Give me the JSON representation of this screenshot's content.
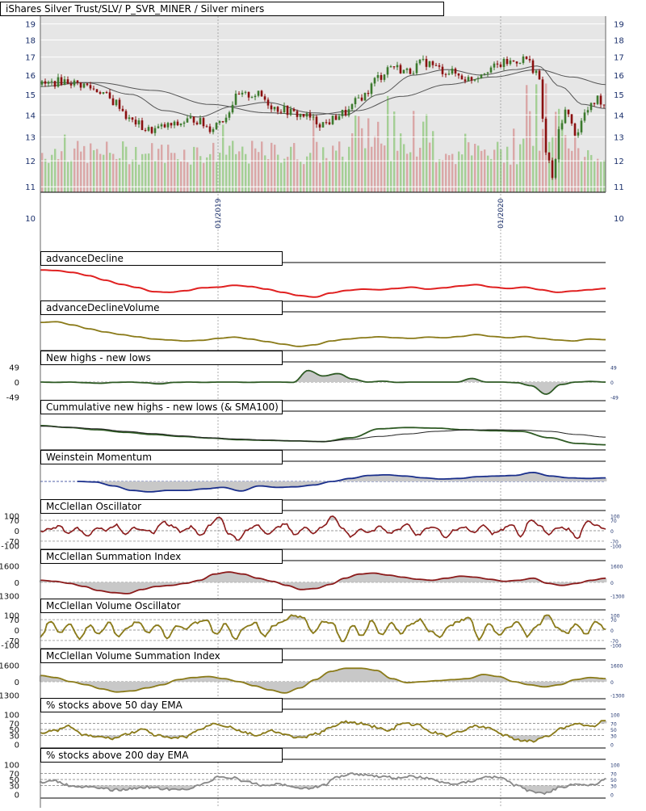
{
  "header": {
    "main_title": "iShares Silver Trust/SLV/ P_SVR_MINER / Silver miners",
    "date_labels": [
      "01/2019",
      "01/2020"
    ]
  },
  "panels": {
    "advance_decline": "advanceDecline",
    "advance_decline_volume": "advanceDeclineVolume",
    "new_highs_lows": "New highs - new lows",
    "cum_new_highs_lows": "Cummulative new highs - new lows (& SMA100)",
    "weinstein": "Weinstein Momentum",
    "mcclellan_osc": "McClellan Oscillator",
    "mcclellan_sum": "McClellan Summation Index",
    "mcclellan_vol_osc": "McClellan Volume Oscillator",
    "mcclellan_vol_sum": "McClellan Volume Summation Index",
    "pct_50ema": "% stocks above 50 day EMA",
    "pct_200ema": "% stocks above 200 day EMA"
  },
  "colors": {
    "background": "#e6e6e6",
    "candle_up": "#3c7a2e",
    "candle_down": "#8b1010",
    "volume_up": "#9ccc8c",
    "volume_down": "#d8a0a0",
    "moving_average": "#555555",
    "adv_decline": "#e02020",
    "olive": "#8a7a18",
    "dark_green": "#2e5a24",
    "weinstein": "#1a2f8c",
    "mcclellan": "#8b1a1a",
    "pct200": "#888888",
    "fill": "#c8c8c8"
  },
  "chart_data": [
    {
      "type": "candlestick",
      "title": "iShares Silver Trust/SLV/ P_SVR_MINER / Silver miners",
      "y_ticks": [
        11,
        12,
        13,
        14,
        15,
        16,
        17,
        18,
        19
      ],
      "y_scale": "log",
      "ylim": [
        10.8,
        19.5
      ],
      "x_labels": [
        "01/2019",
        "01/2020"
      ],
      "price_path": {
        "t": [
          0,
          0.04,
          0.07,
          0.1,
          0.13,
          0.16,
          0.19,
          0.23,
          0.27,
          0.3,
          0.32,
          0.35,
          0.38,
          0.42,
          0.46,
          0.5,
          0.54,
          0.57,
          0.6,
          0.62,
          0.65,
          0.68,
          0.72,
          0.76,
          0.8,
          0.83,
          0.86,
          0.88,
          0.9,
          0.91,
          0.92,
          0.93,
          0.95,
          0.97,
          0.99,
          1.0
        ],
        "close": [
          15.5,
          15.7,
          15.5,
          15.2,
          14.6,
          13.7,
          13.3,
          13.5,
          13.8,
          13.4,
          13.8,
          14.9,
          15.0,
          14.3,
          14.0,
          13.6,
          14.1,
          14.9,
          15.9,
          16.5,
          16.2,
          16.7,
          16.2,
          15.8,
          16.4,
          16.7,
          16.9,
          16.2,
          12.0,
          11.3,
          13.3,
          14.2,
          13.2,
          14.2,
          14.8,
          14.5
        ]
      },
      "ma_fast": {
        "t": [
          0,
          0.08,
          0.16,
          0.22,
          0.28,
          0.34,
          0.4,
          0.48,
          0.54,
          0.6,
          0.66,
          0.72,
          0.78,
          0.84,
          0.88,
          0.92,
          0.96,
          1.0
        ],
        "values": [
          15.4,
          15.6,
          15.0,
          14.2,
          13.9,
          14.4,
          14.6,
          14.1,
          14.0,
          15.0,
          16.0,
          16.3,
          16.0,
          16.3,
          16.5,
          15.4,
          14.5,
          14.3
        ]
      },
      "ma_slow": {
        "t": [
          0,
          0.1,
          0.2,
          0.3,
          0.4,
          0.48,
          0.56,
          0.64,
          0.72,
          0.8,
          0.88,
          0.94,
          1.0
        ],
        "values": [
          15.6,
          15.6,
          15.2,
          14.5,
          14.1,
          14.0,
          14.2,
          14.9,
          15.5,
          15.9,
          16.3,
          15.9,
          15.5
        ]
      }
    },
    {
      "type": "line",
      "title": "advanceDecline",
      "series": [
        {
          "values": [
            0.9,
            0.88,
            0.82,
            0.72,
            0.58,
            0.45,
            0.35,
            0.22,
            0.2,
            0.25,
            0.34,
            0.36,
            0.42,
            0.38,
            0.3,
            0.2,
            0.1,
            0.05,
            0.18,
            0.26,
            0.3,
            0.28,
            0.32,
            0.36,
            0.3,
            0.34,
            0.4,
            0.44,
            0.36,
            0.32,
            0.36,
            0.28,
            0.2,
            0.24,
            0.28,
            0.32
          ]
        }
      ]
    },
    {
      "type": "line",
      "title": "advanceDeclineVolume",
      "series": [
        {
          "values": [
            0.8,
            0.82,
            0.72,
            0.6,
            0.5,
            0.42,
            0.35,
            0.28,
            0.25,
            0.22,
            0.24,
            0.3,
            0.34,
            0.28,
            0.2,
            0.12,
            0.05,
            0.1,
            0.22,
            0.28,
            0.32,
            0.35,
            0.32,
            0.3,
            0.34,
            0.32,
            0.36,
            0.42,
            0.36,
            0.32,
            0.36,
            0.3,
            0.25,
            0.22,
            0.28,
            0.26
          ]
        }
      ]
    },
    {
      "type": "line",
      "title": "New highs - new lows",
      "y_ticks": [
        49,
        0,
        -49
      ],
      "series": [
        {
          "values": [
            0,
            -1,
            0,
            -2,
            -4,
            -1,
            0,
            -2,
            -6,
            -1,
            0,
            -1,
            0,
            0,
            -1,
            0,
            0,
            -1,
            38,
            20,
            28,
            10,
            0,
            3,
            -1,
            0,
            0,
            0,
            0,
            12,
            0,
            0,
            -2,
            -12,
            -40,
            -8,
            0,
            2,
            0
          ]
        }
      ]
    },
    {
      "type": "line",
      "title": "Cummulative new highs - new lows (& SMA100)",
      "series": [
        {
          "values": [
            0.68,
            0.62,
            0.55,
            0.47,
            0.4,
            0.34,
            0.29,
            0.24,
            0.22,
            0.2,
            0.18,
            0.3,
            0.58,
            0.62,
            0.6,
            0.55,
            0.52,
            0.5,
            0.3,
            0.12,
            0.08
          ]
        },
        {
          "values": [
            0.66,
            0.63,
            0.58,
            0.5,
            0.43,
            0.36,
            0.3,
            0.26,
            0.23,
            0.2,
            0.18,
            0.25,
            0.34,
            0.42,
            0.5,
            0.54,
            0.55,
            0.54,
            0.5,
            0.4,
            0.32
          ]
        }
      ]
    },
    {
      "type": "area",
      "title": "Weinstein Momentum",
      "series": [
        {
          "values": [
            null,
            null,
            0.5,
            0.48,
            0.35,
            0.2,
            0.15,
            0.2,
            0.2,
            0.25,
            0.3,
            0.18,
            0.35,
            0.3,
            0.32,
            0.38,
            0.5,
            0.6,
            0.7,
            0.72,
            0.68,
            0.62,
            0.58,
            0.6,
            0.66,
            0.68,
            0.7,
            0.8,
            0.68,
            0.62,
            0.6,
            0.62
          ]
        }
      ]
    },
    {
      "type": "line",
      "title": "McClellan Oscillator",
      "y_ticks": [
        100,
        70,
        0,
        -70,
        -100
      ],
      "ylim": [
        -100,
        100
      ],
      "series": [
        {
          "values": [
            -5,
            10,
            30,
            -20,
            15,
            -40,
            20,
            0,
            40,
            -30,
            20,
            10,
            -15,
            60,
            30,
            -10,
            25,
            -35,
            40,
            90,
            -20,
            -60,
            10,
            35,
            -25,
            15,
            50,
            -30,
            20,
            -20,
            30,
            95,
            20,
            -40,
            10,
            -10,
            30,
            -20,
            10,
            40,
            -30,
            15,
            20,
            -50,
            10,
            25,
            -15,
            35,
            -20,
            10,
            45,
            -40,
            70,
            30,
            -20,
            20,
            10,
            -50,
            60,
            40,
            10
          ]
        }
      ]
    },
    {
      "type": "area",
      "title": "McClellan Summation Index",
      "y_ticks": [
        1600,
        0,
        -1300
      ],
      "ylim": [
        -1300,
        1600
      ],
      "series": [
        {
          "values": [
            200,
            100,
            -100,
            -400,
            -800,
            -1000,
            -1100,
            -700,
            -400,
            -300,
            -100,
            200,
            800,
            1000,
            800,
            400,
            100,
            -300,
            -700,
            -600,
            -200,
            400,
            800,
            900,
            700,
            500,
            300,
            200,
            400,
            600,
            500,
            300,
            100,
            200,
            400,
            -100,
            -300,
            -100,
            200,
            400
          ]
        }
      ]
    },
    {
      "type": "line",
      "title": "McClellan Volume Oscillator",
      "y_ticks": [
        100,
        70,
        0,
        -70,
        -100
      ],
      "ylim": [
        -100,
        100
      ],
      "series": [
        {
          "values": [
            -50,
            60,
            -20,
            40,
            -60,
            30,
            -30,
            50,
            -40,
            20,
            60,
            -20,
            40,
            -50,
            30,
            10,
            50,
            70,
            -30,
            40,
            -60,
            20,
            50,
            -40,
            30,
            60,
            100,
            80,
            -20,
            60,
            40,
            -80,
            30,
            -40,
            60,
            -30,
            50,
            -20,
            40,
            70,
            -10,
            -50,
            30,
            60,
            90,
            -60,
            40,
            -30,
            20,
            50,
            -40,
            30,
            100,
            20,
            -20,
            40,
            -30,
            60,
            10
          ]
        }
      ]
    },
    {
      "type": "area",
      "title": "McClellan Volume Summation Index",
      "y_ticks": [
        1600,
        0,
        -1300
      ],
      "ylim": [
        -1300,
        1600
      ],
      "series": [
        {
          "values": [
            600,
            400,
            0,
            -300,
            -700,
            -1000,
            -900,
            -600,
            -300,
            200,
            400,
            500,
            300,
            0,
            -400,
            -800,
            -1100,
            -600,
            200,
            1000,
            1300,
            1300,
            1100,
            300,
            -100,
            0,
            100,
            200,
            300,
            700,
            500,
            0,
            -300,
            -500,
            -300,
            200,
            400,
            300
          ]
        }
      ]
    },
    {
      "type": "line",
      "title": "% stocks above 50 day EMA",
      "y_ticks": [
        100,
        70,
        50,
        30,
        0
      ],
      "ylim": [
        0,
        100
      ],
      "series": [
        {
          "values": [
            40,
            45,
            60,
            30,
            25,
            20,
            35,
            50,
            30,
            20,
            25,
            50,
            70,
            60,
            40,
            30,
            45,
            30,
            20,
            35,
            55,
            75,
            70,
            60,
            45,
            70,
            65,
            40,
            30,
            45,
            60,
            55,
            30,
            15,
            10,
            30,
            55,
            70,
            60,
            80
          ]
        }
      ]
    },
    {
      "type": "line",
      "title": "% stocks above 200 day EMA",
      "y_ticks": [
        100,
        70,
        50,
        30,
        0
      ],
      "ylim": [
        0,
        100
      ],
      "series": [
        {
          "values": [
            40,
            45,
            30,
            25,
            20,
            15,
            18,
            25,
            20,
            15,
            20,
            35,
            60,
            55,
            40,
            30,
            35,
            25,
            20,
            30,
            60,
            70,
            65,
            60,
            55,
            60,
            55,
            40,
            35,
            45,
            60,
            55,
            30,
            10,
            5,
            25,
            35,
            30,
            50
          ]
        }
      ]
    }
  ]
}
